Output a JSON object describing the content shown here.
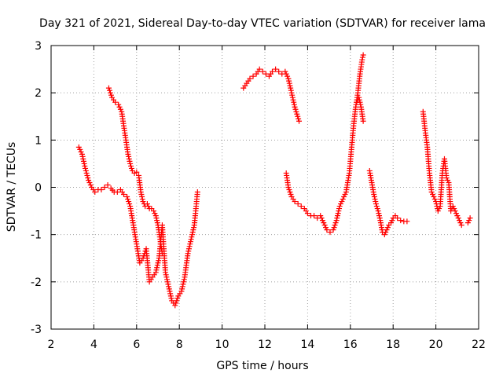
{
  "chart_data": {
    "type": "scatter",
    "title": "Day 321 of 2021, Sidereal Day-to-day VTEC variation (SDTVAR) for receiver lama",
    "xlabel": "GPS time / hours",
    "ylabel": "SDTVAR / TECUs",
    "xlim": [
      2,
      22
    ],
    "ylim": [
      -3,
      3
    ],
    "xticks": [
      "2",
      "4",
      "6",
      "8",
      "10",
      "12",
      "14",
      "16",
      "18",
      "20",
      "22"
    ],
    "yticks": [
      "3",
      "2",
      "1",
      "0",
      "-1",
      "-2",
      "-3"
    ],
    "grid": true,
    "marker": "+",
    "color": "#ff0000",
    "series": [
      {
        "name": "segment-1",
        "x": [
          3.3,
          3.45,
          3.6,
          3.75,
          3.9,
          4.05,
          4.2,
          4.35,
          4.5,
          4.65,
          4.8,
          4.95,
          5.1,
          5.25,
          5.4,
          5.55,
          5.7,
          5.85,
          6.0,
          6.15,
          6.3,
          6.45,
          6.6,
          6.75,
          6.9,
          7.05,
          7.2,
          7.35,
          7.5,
          7.65,
          7.8,
          7.95,
          8.1,
          8.25,
          8.4,
          8.55,
          8.7,
          8.85
        ],
        "y": [
          0.85,
          0.7,
          0.4,
          0.15,
          0.0,
          -0.1,
          -0.05,
          -0.05,
          0.0,
          0.05,
          -0.02,
          -0.1,
          -0.1,
          -0.05,
          -0.15,
          -0.2,
          -0.4,
          -0.8,
          -1.2,
          -1.6,
          -1.5,
          -1.3,
          -2.0,
          -1.9,
          -1.8,
          -1.5,
          -0.8,
          -1.8,
          -2.1,
          -2.4,
          -2.5,
          -2.3,
          -2.2,
          -1.9,
          -1.4,
          -1.1,
          -0.8,
          -0.1
        ]
      },
      {
        "name": "segment-2",
        "x": [
          4.7,
          4.85,
          5.0,
          5.15,
          5.3,
          5.4,
          5.5,
          5.6,
          5.7,
          5.8,
          5.9,
          6.0,
          6.1,
          6.2,
          6.3,
          6.4,
          6.5,
          6.6,
          6.7,
          6.8,
          6.9,
          7.0,
          7.1,
          7.2
        ],
        "y": [
          2.1,
          1.9,
          1.8,
          1.75,
          1.6,
          1.3,
          1.0,
          0.7,
          0.5,
          0.35,
          0.3,
          0.32,
          0.25,
          -0.1,
          -0.3,
          -0.4,
          -0.35,
          -0.45,
          -0.45,
          -0.5,
          -0.6,
          -0.8,
          -1.1,
          -1.4
        ]
      },
      {
        "name": "segment-3",
        "x": [
          11.0,
          11.15,
          11.3,
          11.45,
          11.6,
          11.75,
          11.9,
          12.05,
          12.2,
          12.35,
          12.5,
          12.65,
          12.8,
          12.95,
          13.1,
          13.2,
          13.3,
          13.4,
          13.5,
          13.6
        ],
        "y": [
          2.1,
          2.2,
          2.3,
          2.35,
          2.4,
          2.5,
          2.45,
          2.4,
          2.35,
          2.45,
          2.5,
          2.45,
          2.4,
          2.45,
          2.3,
          2.1,
          1.9,
          1.7,
          1.55,
          1.4
        ]
      },
      {
        "name": "segment-4",
        "x": [
          13.0,
          13.1,
          13.25,
          13.4,
          13.55,
          13.7,
          13.85,
          14.0,
          14.15,
          14.3,
          14.45,
          14.6,
          14.75,
          14.9,
          15.05,
          15.2,
          15.35,
          15.5,
          15.65,
          15.8,
          15.95,
          16.05,
          16.15,
          16.25,
          16.35,
          16.45,
          16.55,
          16.6
        ],
        "y": [
          0.3,
          0.0,
          -0.2,
          -0.3,
          -0.35,
          -0.4,
          -0.45,
          -0.55,
          -0.6,
          -0.6,
          -0.65,
          -0.6,
          -0.75,
          -0.9,
          -0.95,
          -0.9,
          -0.7,
          -0.4,
          -0.25,
          -0.1,
          0.3,
          0.8,
          1.3,
          1.7,
          2.0,
          2.4,
          2.7,
          2.8
        ]
      },
      {
        "name": "segment-5",
        "x": [
          16.3,
          16.4,
          16.5,
          16.6
        ],
        "y": [
          1.8,
          1.9,
          1.7,
          1.4
        ]
      },
      {
        "name": "segment-6",
        "x": [
          16.9,
          17.0,
          17.1,
          17.2,
          17.3,
          17.4,
          17.5,
          17.6,
          17.7,
          17.8,
          17.9,
          18.0,
          18.1,
          18.2,
          18.35,
          18.5,
          18.65
        ],
        "y": [
          0.35,
          0.1,
          -0.15,
          -0.35,
          -0.5,
          -0.7,
          -0.95,
          -1.0,
          -0.9,
          -0.8,
          -0.75,
          -0.65,
          -0.6,
          -0.65,
          -0.7,
          -0.72,
          -0.72
        ]
      },
      {
        "name": "segment-7",
        "x": [
          19.4,
          19.5,
          19.6,
          19.7,
          19.8,
          19.9,
          20.0,
          20.1,
          20.2,
          20.3,
          20.4,
          20.5,
          20.6,
          20.7,
          20.8,
          20.9,
          21.0,
          21.1,
          21.2
        ],
        "y": [
          1.6,
          1.2,
          0.85,
          0.3,
          -0.1,
          -0.2,
          -0.3,
          -0.5,
          -0.4,
          0.3,
          0.6,
          0.2,
          0.1,
          -0.5,
          -0.4,
          -0.5,
          -0.6,
          -0.7,
          -0.8
        ]
      },
      {
        "name": "segment-8",
        "x": [
          21.5,
          21.6
        ],
        "y": [
          -0.75,
          -0.65
        ]
      }
    ]
  }
}
